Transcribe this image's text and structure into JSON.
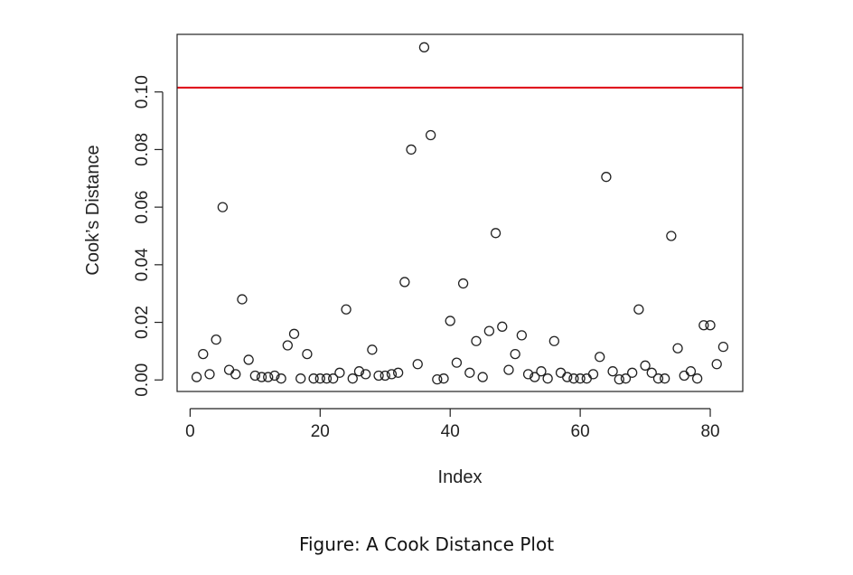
{
  "chart_data": {
    "type": "scatter",
    "title": "",
    "xlabel": "Index",
    "ylabel": "Cook’s Distance",
    "xlim": [
      -2,
      85
    ],
    "ylim": [
      -0.004,
      0.12
    ],
    "xticks": [
      0,
      20,
      40,
      60,
      80
    ],
    "xtick_labels": [
      "0",
      "20",
      "40",
      "60",
      "80"
    ],
    "yticks": [
      0.0,
      0.02,
      0.04,
      0.06,
      0.08,
      0.1
    ],
    "ytick_labels": [
      "0.00",
      "0.02",
      "0.04",
      "0.06",
      "0.08",
      "0.10"
    ],
    "grid": false,
    "reference_line": {
      "y": 0.1015,
      "color": "#e0141e"
    },
    "marker": "open-circle",
    "point_color": "#222222",
    "x": [
      1,
      2,
      3,
      4,
      5,
      6,
      7,
      8,
      9,
      10,
      11,
      12,
      13,
      14,
      15,
      16,
      17,
      18,
      19,
      20,
      21,
      22,
      23,
      24,
      25,
      26,
      27,
      28,
      29,
      30,
      31,
      32,
      33,
      34,
      35,
      36,
      37,
      38,
      39,
      40,
      41,
      42,
      43,
      44,
      45,
      46,
      47,
      48,
      49,
      50,
      51,
      52,
      53,
      54,
      55,
      56,
      57,
      58,
      59,
      60,
      61,
      62,
      63,
      64,
      65,
      66,
      67,
      68,
      69,
      70,
      71,
      72,
      73,
      74,
      75,
      76,
      77,
      78,
      79,
      80,
      81,
      82
    ],
    "y": [
      0.001,
      0.009,
      0.002,
      0.014,
      0.06,
      0.0035,
      0.002,
      0.028,
      0.007,
      0.0015,
      0.001,
      0.001,
      0.0015,
      0.0005,
      0.012,
      0.016,
      0.0005,
      0.009,
      0.0005,
      0.0005,
      0.0005,
      0.0005,
      0.0025,
      0.0245,
      0.0005,
      0.003,
      0.002,
      0.0105,
      0.0015,
      0.0015,
      0.002,
      0.0025,
      0.034,
      0.08,
      0.0055,
      0.1155,
      0.085,
      0.0002,
      0.0005,
      0.0205,
      0.006,
      0.0335,
      0.0025,
      0.0135,
      0.001,
      0.017,
      0.051,
      0.0185,
      0.0035,
      0.009,
      0.0155,
      0.002,
      0.001,
      0.003,
      0.0005,
      0.0135,
      0.0025,
      0.001,
      0.0005,
      0.0005,
      0.0005,
      0.002,
      0.008,
      0.0705,
      0.003,
      0.0002,
      0.0005,
      0.0025,
      0.0245,
      0.005,
      0.0025,
      0.0005,
      0.0005,
      0.05,
      0.011,
      0.0015,
      0.003,
      0.0005,
      0.019,
      0.019,
      0.0055,
      0.0115
    ]
  },
  "caption": "Figure: A Cook Distance Plot"
}
